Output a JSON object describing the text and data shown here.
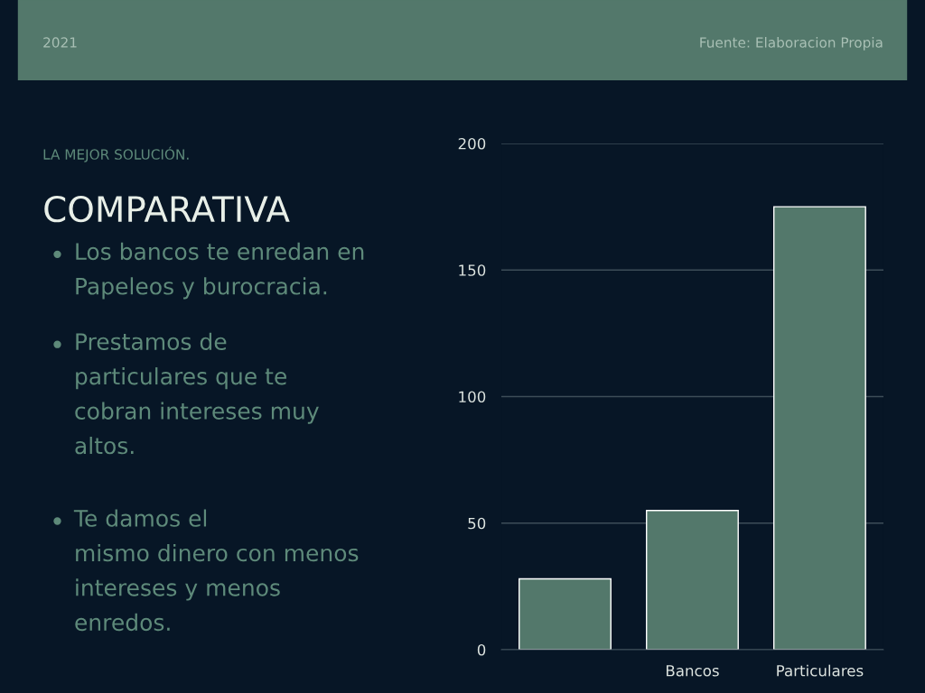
{
  "chart_data": {
    "type": "bar",
    "title": "COMPARATIVA",
    "subtitle": "LA MEJOR SOLUCIÓN.",
    "annotations": [
      "2021",
      "Fuente: Elaboracion Propia",
      "Los bancos te enredan en\nPapeleos y burocracia.",
      "Prestamos de\nparticulares que te\ncobran intereses muy\naltos.",
      "Te damos el\nmismo dinero con menos\nintereses y menos\nenredos."
    ],
    "categories": [
      null,
      "Bancos",
      "Particulares"
    ],
    "values": [
      28,
      55,
      175
    ],
    "color": "#53786b",
    "ylim": [
      0,
      200
    ],
    "yticks": [
      0,
      50,
      100,
      150,
      200
    ],
    "grid": "y"
  }
}
